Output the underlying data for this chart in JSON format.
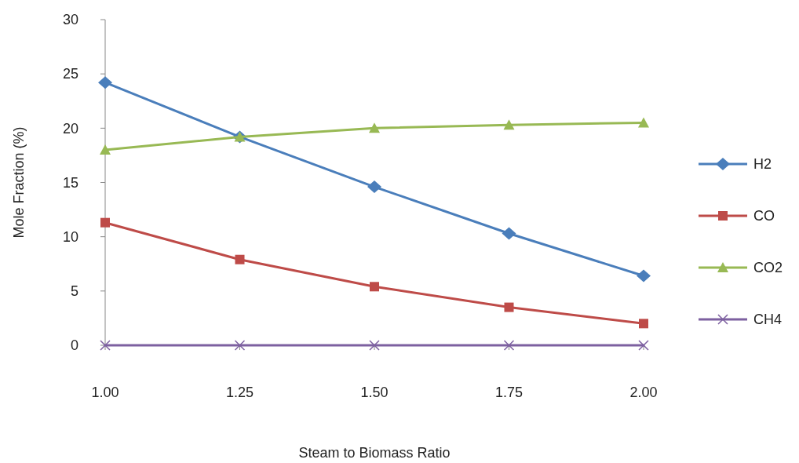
{
  "chart_data": {
    "type": "line",
    "xlabel": "Steam to Biomass Ratio",
    "ylabel": "Mole Fraction (%)",
    "x": [
      1.0,
      1.25,
      1.5,
      1.75,
      2.0
    ],
    "xlim": [
      1,
      2
    ],
    "xticks": [
      {
        "value": 1,
        "label": "1.00"
      },
      {
        "value": 1.25,
        "label": "1.25"
      },
      {
        "value": 1.5,
        "label": "1.50"
      },
      {
        "value": 1.75,
        "label": "1.75"
      },
      {
        "value": 2,
        "label": "2.00"
      }
    ],
    "ylim": [
      0,
      30
    ],
    "yticks": [
      0,
      5,
      10,
      15,
      20,
      25,
      30
    ],
    "grid": false,
    "legend": "right",
    "line_style": "solid",
    "series": [
      {
        "name": "H2",
        "color": "#4a7ebb",
        "marker": "diamond",
        "values": [
          24.2,
          19.2,
          14.6,
          10.3,
          6.4
        ]
      },
      {
        "name": "CO",
        "color": "#be4b48",
        "marker": "square",
        "values": [
          11.3,
          7.9,
          5.4,
          3.5,
          2.0
        ]
      },
      {
        "name": "CO2",
        "color": "#98b954",
        "marker": "triangle",
        "values": [
          18.0,
          19.2,
          20.0,
          20.3,
          20.5
        ]
      },
      {
        "name": "CH4",
        "color": "#7d60a0",
        "marker": "cross",
        "values": [
          0,
          0,
          0,
          0,
          0
        ]
      }
    ]
  }
}
